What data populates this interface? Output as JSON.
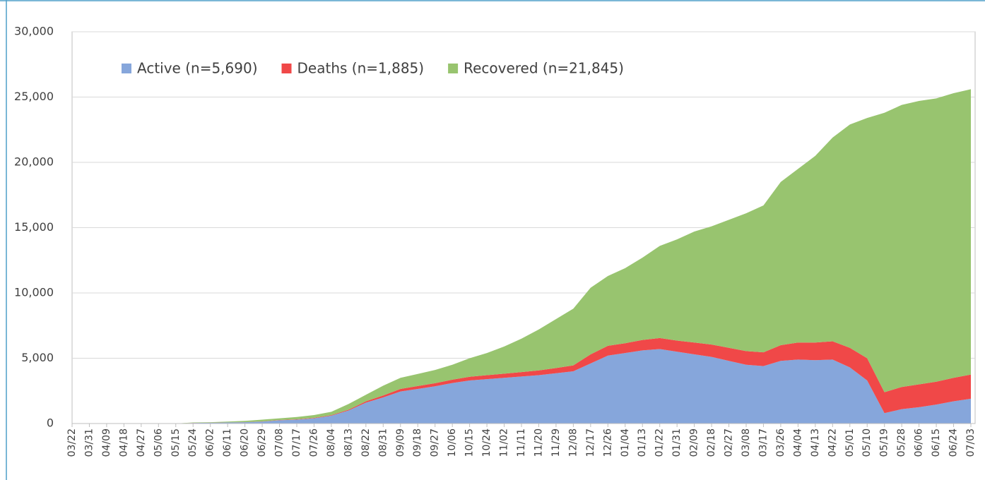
{
  "chart_data": {
    "type": "stacked-area",
    "categories": [
      "03/22",
      "03/31",
      "04/09",
      "04/18",
      "04/27",
      "05/06",
      "05/15",
      "05/24",
      "06/02",
      "06/11",
      "06/20",
      "06/29",
      "07/08",
      "07/17",
      "07/26",
      "08/04",
      "08/13",
      "08/22",
      "08/31",
      "09/09",
      "09/18",
      "09/27",
      "10/06",
      "10/15",
      "10/24",
      "11/02",
      "11/11",
      "11/20",
      "11/29",
      "12/08",
      "12/17",
      "12/26",
      "01/04",
      "01/13",
      "01/22",
      "01/31",
      "02/09",
      "02/18",
      "02/27",
      "03/08",
      "03/17",
      "03/26",
      "04/04",
      "04/13",
      "04/22",
      "05/01",
      "05/10",
      "05/19",
      "05/28",
      "06/06",
      "06/15",
      "06/24",
      "07/03"
    ],
    "series": [
      {
        "name": "Active (n=5,690)",
        "color": "#86a6db",
        "values": [
          0,
          0,
          0,
          0,
          0,
          0,
          0,
          50,
          60,
          80,
          100,
          150,
          250,
          300,
          400,
          600,
          1000,
          1600,
          2000,
          2450,
          2650,
          2850,
          3100,
          3300,
          3400,
          3500,
          3600,
          3700,
          3850,
          4000,
          4600,
          5200,
          5400,
          5600,
          5700,
          5500,
          5300,
          5100,
          4800,
          4500,
          4400,
          4800,
          4900,
          4850,
          4900,
          4300,
          3300,
          800,
          1100,
          1250,
          1450,
          1700,
          1900
        ]
      },
      {
        "name": "Deaths (n=1,885)",
        "color": "#f04848",
        "values": [
          0,
          0,
          0,
          0,
          0,
          0,
          0,
          5,
          5,
          10,
          10,
          15,
          20,
          25,
          30,
          40,
          60,
          100,
          150,
          200,
          220,
          240,
          260,
          280,
          300,
          320,
          340,
          370,
          400,
          450,
          700,
          750,
          750,
          800,
          850,
          850,
          900,
          950,
          1000,
          1050,
          1050,
          1200,
          1300,
          1350,
          1400,
          1500,
          1700,
          1600,
          1700,
          1750,
          1750,
          1800,
          1850
        ]
      },
      {
        "name": "Recovered (n=21,845)",
        "color": "#98c46f",
        "values": [
          0,
          0,
          0,
          0,
          0,
          0,
          0,
          25,
          35,
          60,
          90,
          135,
          130,
          175,
          220,
          260,
          440,
          500,
          750,
          850,
          930,
          1010,
          1140,
          1420,
          1700,
          2080,
          2560,
          3130,
          3750,
          4350,
          5100,
          5350,
          5750,
          6300,
          7050,
          7750,
          8500,
          9050,
          9800,
          10550,
          11250,
          12500,
          13300,
          14300,
          15600,
          17100,
          18400,
          21400,
          21600,
          21700,
          21700,
          21800,
          21850
        ]
      }
    ],
    "ylim": [
      0,
      30000
    ],
    "yticks": [
      0,
      {
        "value": 5000,
        "label": "5,000"
      },
      {
        "value": 10000,
        "label": "10,000"
      },
      {
        "value": 15000,
        "label": "15,000"
      },
      {
        "value": 20000,
        "label": "20,000"
      },
      {
        "value": 25000,
        "label": "25,000"
      },
      {
        "value": 30000,
        "label": "30,000"
      }
    ],
    "grid": true,
    "legend": "top-left"
  }
}
